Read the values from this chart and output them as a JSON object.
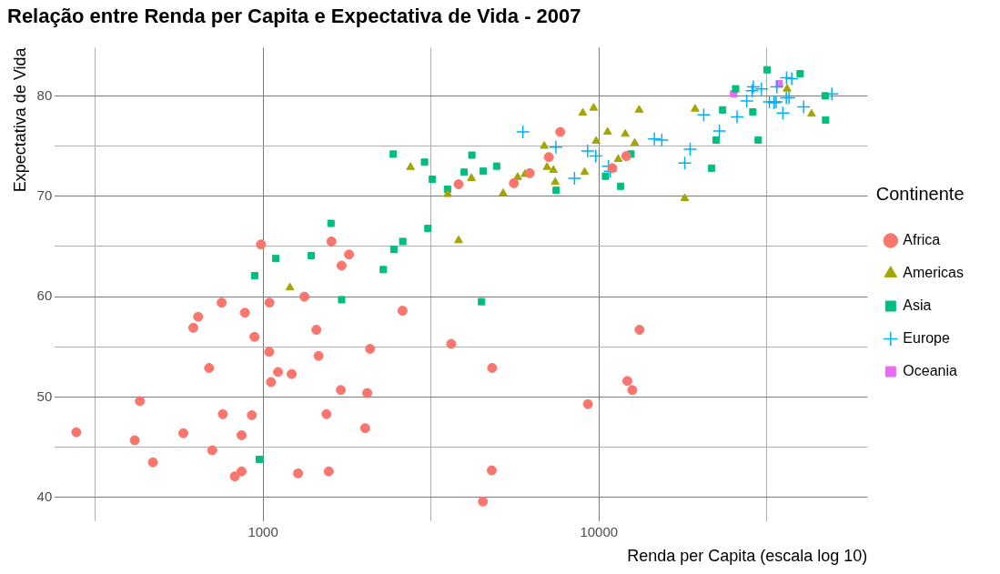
{
  "chart_data": {
    "type": "scatter",
    "title": "Relação entre Renda per Capita e Expectativa de Vida - 2007",
    "xlabel": "Renda per Capita (escala log 10)",
    "ylabel": "Expectativa de Vida",
    "legend_title": "Continente",
    "legend": "right",
    "grid": true,
    "log": "x",
    "xlim": [
      240,
      63000
    ],
    "xticks": [
      {
        "value": 316.2,
        "label": null
      },
      1000,
      {
        "value": 3162,
        "label": null
      },
      10000,
      {
        "value": 31623,
        "label": null
      }
    ],
    "ylim": [
      37.6,
      84.8
    ],
    "yticks": [
      40,
      {
        "value": 45,
        "label": null
      },
      50,
      {
        "value": 55,
        "label": null
      },
      60,
      {
        "value": 65,
        "label": null
      },
      70,
      {
        "value": 75,
        "label": null
      },
      80
    ],
    "series": [
      {
        "name": "Africa",
        "color": "#f8766d",
        "marker": "circle",
        "x": [
          6223,
          4797,
          1441,
          12570,
          1217,
          430,
          2042,
          706,
          1704,
          986,
          278,
          3633,
          1545,
          2083,
          5581,
          12154,
          641,
          691,
          13207,
          753,
          1328,
          943,
          579,
          1463,
          1569,
          415,
          12058,
          1045,
          759,
          1043,
          1803,
          10957,
          3820,
          824,
          4811,
          620,
          2014,
          7670,
          863,
          1598,
          1713,
          863,
          926,
          9270,
          2602,
          4514,
          1108,
          883,
          7093,
          1056,
          1271,
          470
        ],
        "values": [
          72.3,
          42.7,
          56.7,
          50.7,
          52.3,
          49.6,
          50.4,
          44.7,
          50.7,
          65.2,
          46.5,
          55.3,
          48.3,
          54.8,
          71.3,
          51.6,
          58.0,
          52.9,
          56.7,
          59.4,
          60.0,
          56.0,
          46.4,
          54.1,
          42.6,
          45.7,
          74.0,
          59.4,
          48.3,
          54.5,
          64.2,
          72.8,
          71.2,
          42.1,
          52.9,
          56.9,
          46.9,
          76.4,
          46.2,
          65.5,
          63.1,
          42.6,
          48.2,
          49.3,
          58.6,
          39.6,
          52.5,
          58.4,
          73.9,
          51.5,
          42.4,
          43.5
        ]
      },
      {
        "name": "Americas",
        "color": "#a3a500",
        "marker": "triangle",
        "x": [
          12779,
          3822,
          9066,
          36319,
          13172,
          7007,
          9645,
          8948,
          6025,
          6873,
          5728,
          5186,
          1202,
          3548,
          7321,
          11978,
          2749,
          9809,
          4173,
          7409,
          19329,
          18009,
          42952,
          10612,
          11416
        ],
        "values": [
          75.3,
          65.6,
          72.4,
          80.7,
          78.6,
          72.9,
          78.8,
          78.3,
          72.2,
          75.0,
          71.9,
          70.3,
          60.9,
          70.2,
          72.6,
          76.2,
          72.9,
          75.5,
          71.8,
          71.4,
          78.7,
          69.8,
          78.2,
          76.4,
          73.7
        ]
      },
      {
        "name": "Asia",
        "color": "#00bf7d",
        "marker": "square",
        "x": [
          975,
          29796,
          1391,
          1714,
          4959,
          39725,
          2452,
          3541,
          11606,
          4471,
          25523,
          31656,
          4520,
          1593,
          23348,
          47307,
          10461,
          12452,
          3096,
          944,
          1091,
          22316,
          2606,
          3191,
          21655,
          47143,
          3970,
          4185,
          28718,
          7458,
          2442,
          3025,
          2281
        ],
        "values": [
          43.8,
          75.6,
          64.1,
          59.7,
          73.0,
          82.2,
          64.7,
          70.7,
          71.0,
          59.5,
          80.7,
          82.6,
          72.5,
          67.3,
          78.6,
          77.6,
          72.0,
          74.2,
          66.8,
          62.1,
          63.8,
          75.6,
          65.5,
          71.7,
          72.8,
          80.0,
          72.4,
          74.1,
          78.4,
          70.6,
          74.2,
          73.4,
          62.7
        ]
      },
      {
        "name": "Europe",
        "color": "#00b0f6",
        "marker": "cross",
        "x": [
          5937,
          36127,
          33693,
          7446,
          10681,
          14619,
          22833,
          35278,
          33207,
          30470,
          32170,
          27538,
          18009,
          36181,
          40676,
          28570,
          9254,
          36798,
          49357,
          15390,
          20510,
          10809,
          9787,
          18678,
          25768,
          28821,
          33860,
          37506,
          8458,
          33203
        ],
        "values": [
          76.4,
          79.8,
          79.4,
          74.9,
          73.0,
          75.7,
          76.5,
          78.3,
          79.3,
          80.7,
          79.4,
          79.5,
          73.3,
          81.8,
          78.9,
          80.5,
          74.5,
          79.8,
          80.2,
          75.6,
          78.1,
          72.5,
          74.0,
          74.7,
          77.9,
          80.9,
          80.9,
          81.7,
          71.8,
          79.4
        ]
      },
      {
        "name": "Oceania",
        "color": "#e76bf3",
        "marker": "square",
        "x": [
          34435,
          25185
        ],
        "values": [
          81.2,
          80.2
        ]
      }
    ]
  }
}
